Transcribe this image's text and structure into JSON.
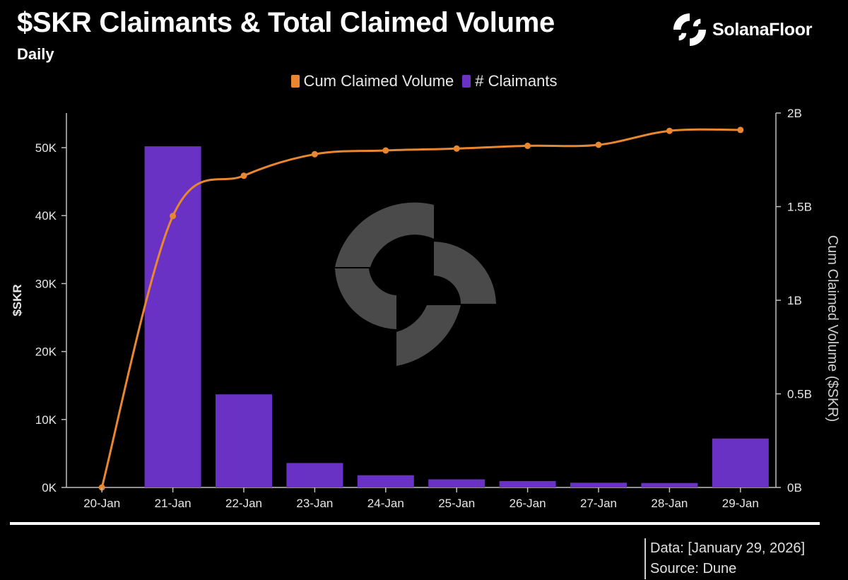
{
  "header": {
    "title": "$SKR Claimants & Total Claimed Volume",
    "subtitle": "Daily",
    "brand": "SolanaFloor"
  },
  "legend": [
    {
      "label": "Cum Claimed Volume",
      "color": "#e8872f"
    },
    {
      "label": "# Claimants",
      "color": "#6a32c4"
    }
  ],
  "footer": {
    "date_line": "Data: [January 29, 2026]",
    "source_line": "Source: Dune"
  },
  "chart_data": {
    "type": "bar+line",
    "title": "$SKR Claimants & Total Claimed Volume",
    "subtitle": "Daily",
    "categories": [
      "20-Jan",
      "21-Jan",
      "22-Jan",
      "23-Jan",
      "24-Jan",
      "25-Jan",
      "26-Jan",
      "27-Jan",
      "28-Jan",
      "29-Jan"
    ],
    "series": [
      {
        "name": "# Claimants",
        "type": "bar",
        "axis": "left",
        "color": "#6a32c4",
        "values": [
          0,
          50200,
          13700,
          3600,
          1800,
          1200,
          950,
          700,
          650,
          7200
        ]
      },
      {
        "name": "Cum Claimed Volume",
        "type": "line",
        "axis": "right",
        "color": "#e8872f",
        "values": [
          0,
          1450000000,
          1665000000,
          1780000000,
          1800000000,
          1810000000,
          1825000000,
          1830000000,
          1905000000,
          1910000000
        ]
      }
    ],
    "ylabel": "$SKR",
    "y2label": "Cum Claimed Volume ($SKR)",
    "ylim": [
      0,
      55000
    ],
    "y2lim": [
      0,
      2000000000
    ],
    "yticks": [
      0,
      10000,
      20000,
      30000,
      40000,
      50000
    ],
    "ytick_labels": [
      "0K",
      "10K",
      "20K",
      "30K",
      "40K",
      "50K"
    ],
    "y2ticks": [
      0,
      500000000,
      1000000000,
      1500000000,
      2000000000
    ],
    "y2tick_labels": [
      "0B",
      "0.5B",
      "1B",
      "1.5B",
      "2B"
    ],
    "legend_position": "top-center",
    "grid": false
  }
}
